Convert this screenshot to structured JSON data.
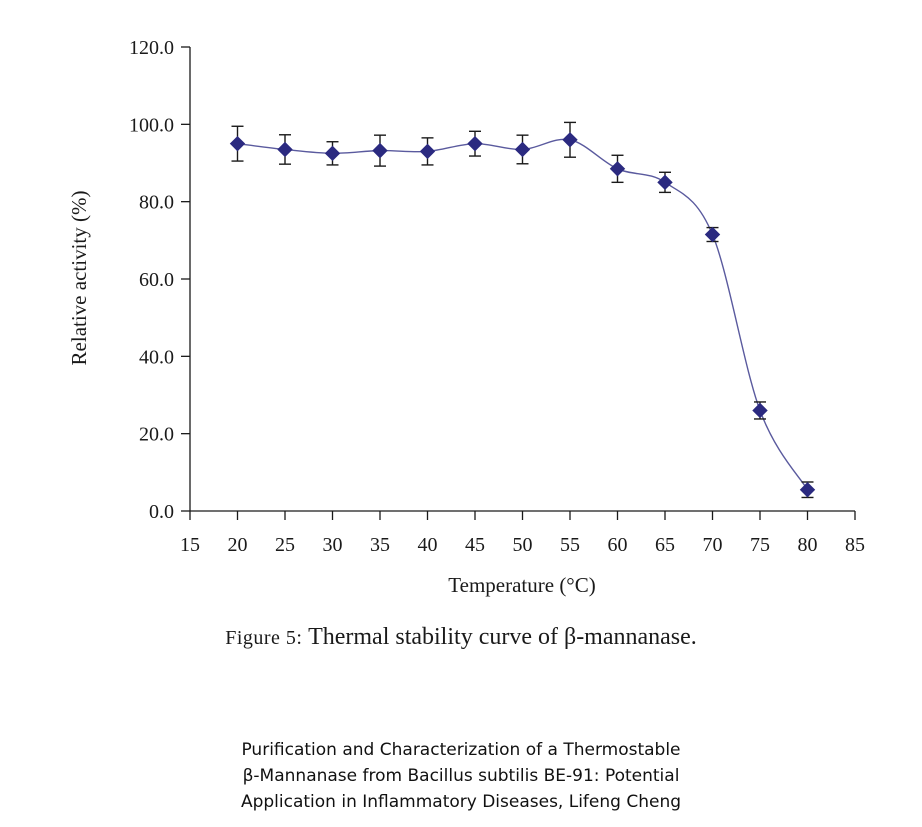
{
  "chart_data": {
    "type": "line",
    "title": "",
    "xlabel": "Temperature (°C)",
    "ylabel": "Relative activity (%)",
    "xlim": [
      15,
      85
    ],
    "ylim": [
      0,
      120
    ],
    "x_ticks": [
      "15",
      "20",
      "25",
      "30",
      "35",
      "40",
      "45",
      "50",
      "55",
      "60",
      "65",
      "70",
      "75",
      "80",
      "85"
    ],
    "y_ticks": [
      "0.0",
      "20.0",
      "40.0",
      "60.0",
      "80.0",
      "100.0",
      "120.0"
    ],
    "series": [
      {
        "name": "Thermal stability",
        "x": [
          20,
          25,
          30,
          35,
          40,
          45,
          50,
          55,
          60,
          65,
          70,
          75,
          80
        ],
        "values": [
          95.0,
          93.5,
          92.5,
          93.2,
          93.0,
          95.0,
          93.5,
          96.0,
          88.5,
          85.0,
          71.5,
          26.0,
          5.5
        ],
        "errors": [
          4.5,
          3.8,
          3.0,
          4.0,
          3.5,
          3.2,
          3.7,
          4.5,
          3.5,
          2.6,
          1.8,
          2.2,
          2.0
        ],
        "color": "#2b2a80",
        "marker": "diamond"
      }
    ],
    "grid": false,
    "legend": "none"
  },
  "caption": {
    "label": "Figure 5:",
    "text": "Thermal stability curve of β-mannanase."
  },
  "source": {
    "line1": "Purification and Characterization of a Thermostable",
    "line2": "β-Mannanase from Bacillus subtilis BE-91: Potential",
    "line3": "Application in Inflammatory Diseases, Lifeng Cheng"
  }
}
